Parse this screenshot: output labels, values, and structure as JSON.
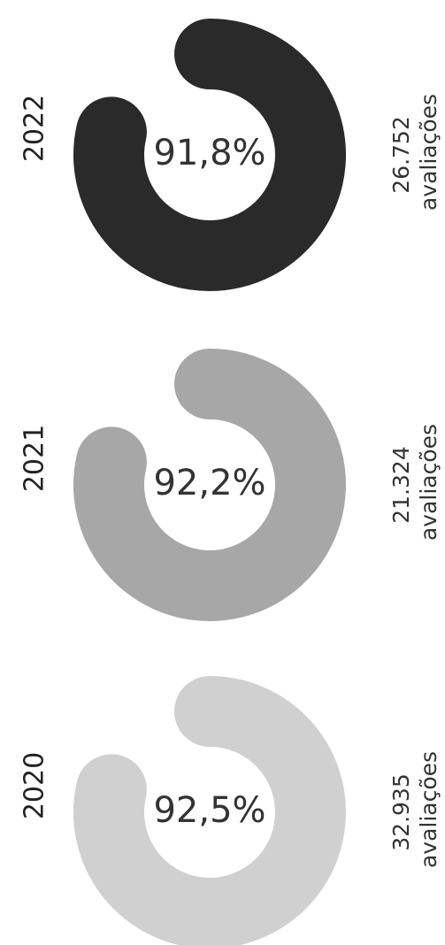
{
  "items": [
    {
      "year": "2022",
      "percent": "91,8%",
      "count": "26.752",
      "label": "avaliações",
      "color": "#2a2a2a"
    },
    {
      "year": "2021",
      "percent": "92,2%",
      "count": "21.324",
      "label": "avaliações",
      "color": "#a7a7a7"
    },
    {
      "year": "2020",
      "percent": "92,5%",
      "count": "32.935",
      "label": "avaliações",
      "color": "#d1d0d1"
    }
  ]
}
